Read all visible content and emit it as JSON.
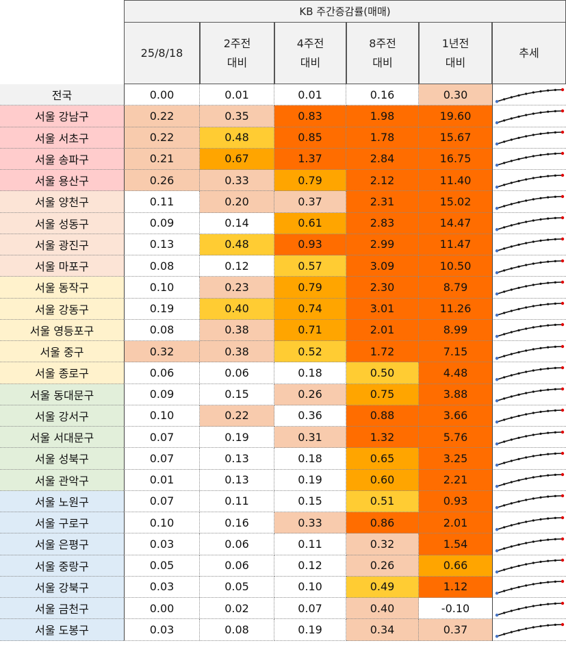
{
  "table": {
    "title": "KB 주간증감률(매매)",
    "headers": [
      {
        "line1": "25/8/18",
        "line2": ""
      },
      {
        "line1": "2주전",
        "line2": "대비"
      },
      {
        "line1": "4주전",
        "line2": "대비"
      },
      {
        "line1": "8주전",
        "line2": "대비"
      },
      {
        "line1": "1년전",
        "line2": "대비"
      },
      {
        "line1": "추세",
        "line2": ""
      }
    ],
    "group_colors": {
      "national": "#f2f2f2",
      "g1": "#ffcccc",
      "g2": "#fce4d6",
      "g3": "#fff2cc",
      "g4": "#e2efda",
      "g5": "#ddebf7"
    },
    "cell_colors": {
      "none": "#ffffff",
      "light": "#f8cbad",
      "yellow": "#ffcc33",
      "orange": "#ffa500",
      "dark": "#ff6d00"
    },
    "rows": [
      {
        "name": "전국",
        "group": "national",
        "values": [
          "0.00",
          "0.01",
          "0.01",
          "0.16",
          "0.30"
        ],
        "colors": [
          "none",
          "none",
          "none",
          "none",
          "light"
        ]
      },
      {
        "name": "서울 강남구",
        "group": "g1",
        "values": [
          "0.22",
          "0.35",
          "0.83",
          "1.98",
          "19.60"
        ],
        "colors": [
          "light",
          "light",
          "dark",
          "dark",
          "dark"
        ]
      },
      {
        "name": "서울 서초구",
        "group": "g1",
        "values": [
          "0.22",
          "0.48",
          "0.85",
          "1.78",
          "15.67"
        ],
        "colors": [
          "light",
          "yellow",
          "dark",
          "dark",
          "dark"
        ]
      },
      {
        "name": "서울 송파구",
        "group": "g1",
        "values": [
          "0.21",
          "0.67",
          "1.37",
          "2.84",
          "16.75"
        ],
        "colors": [
          "light",
          "orange",
          "dark",
          "dark",
          "dark"
        ]
      },
      {
        "name": "서울 용산구",
        "group": "g1",
        "values": [
          "0.26",
          "0.33",
          "0.79",
          "2.12",
          "11.40"
        ],
        "colors": [
          "light",
          "light",
          "orange",
          "dark",
          "dark"
        ]
      },
      {
        "name": "서울 양천구",
        "group": "g2",
        "values": [
          "0.11",
          "0.20",
          "0.37",
          "2.31",
          "15.02"
        ],
        "colors": [
          "none",
          "light",
          "light",
          "dark",
          "dark"
        ]
      },
      {
        "name": "서울 성동구",
        "group": "g2",
        "values": [
          "0.09",
          "0.14",
          "0.61",
          "2.83",
          "14.47"
        ],
        "colors": [
          "none",
          "none",
          "orange",
          "dark",
          "dark"
        ]
      },
      {
        "name": "서울 광진구",
        "group": "g2",
        "values": [
          "0.13",
          "0.48",
          "0.93",
          "2.99",
          "11.47"
        ],
        "colors": [
          "none",
          "yellow",
          "dark",
          "dark",
          "dark"
        ]
      },
      {
        "name": "서울 마포구",
        "group": "g2",
        "values": [
          "0.08",
          "0.12",
          "0.57",
          "3.09",
          "10.50"
        ],
        "colors": [
          "none",
          "none",
          "yellow",
          "dark",
          "dark"
        ]
      },
      {
        "name": "서울 동작구",
        "group": "g3",
        "values": [
          "0.10",
          "0.23",
          "0.79",
          "2.30",
          "8.79"
        ],
        "colors": [
          "none",
          "light",
          "orange",
          "dark",
          "dark"
        ]
      },
      {
        "name": "서울 강동구",
        "group": "g3",
        "values": [
          "0.19",
          "0.40",
          "0.74",
          "3.01",
          "11.26"
        ],
        "colors": [
          "none",
          "yellow",
          "orange",
          "dark",
          "dark"
        ]
      },
      {
        "name": "서울 영등포구",
        "group": "g3",
        "values": [
          "0.08",
          "0.38",
          "0.71",
          "2.01",
          "8.99"
        ],
        "colors": [
          "none",
          "light",
          "orange",
          "dark",
          "dark"
        ]
      },
      {
        "name": "서울 중구",
        "group": "g3",
        "values": [
          "0.32",
          "0.38",
          "0.52",
          "1.72",
          "7.15"
        ],
        "colors": [
          "light",
          "light",
          "yellow",
          "dark",
          "dark"
        ]
      },
      {
        "name": "서울 종로구",
        "group": "g3",
        "values": [
          "0.06",
          "0.06",
          "0.18",
          "0.50",
          "4.48"
        ],
        "colors": [
          "none",
          "none",
          "none",
          "yellow",
          "dark"
        ]
      },
      {
        "name": "서울 동대문구",
        "group": "g4",
        "values": [
          "0.09",
          "0.15",
          "0.26",
          "0.75",
          "3.88"
        ],
        "colors": [
          "none",
          "none",
          "light",
          "orange",
          "dark"
        ]
      },
      {
        "name": "서울 강서구",
        "group": "g4",
        "values": [
          "0.10",
          "0.22",
          "0.36",
          "0.88",
          "3.66"
        ],
        "colors": [
          "none",
          "light",
          "none",
          "dark",
          "dark"
        ]
      },
      {
        "name": "서울 서대문구",
        "group": "g4",
        "values": [
          "0.07",
          "0.19",
          "0.31",
          "1.32",
          "5.76"
        ],
        "colors": [
          "none",
          "none",
          "light",
          "dark",
          "dark"
        ]
      },
      {
        "name": "서울 성북구",
        "group": "g4",
        "values": [
          "0.07",
          "0.13",
          "0.18",
          "0.65",
          "3.25"
        ],
        "colors": [
          "none",
          "none",
          "none",
          "orange",
          "dark"
        ]
      },
      {
        "name": "서울 관악구",
        "group": "g4",
        "values": [
          "0.01",
          "0.13",
          "0.19",
          "0.60",
          "2.21"
        ],
        "colors": [
          "none",
          "none",
          "none",
          "orange",
          "dark"
        ]
      },
      {
        "name": "서울 노원구",
        "group": "g5",
        "values": [
          "0.07",
          "0.11",
          "0.15",
          "0.51",
          "0.93"
        ],
        "colors": [
          "none",
          "none",
          "none",
          "yellow",
          "dark"
        ]
      },
      {
        "name": "서울 구로구",
        "group": "g5",
        "values": [
          "0.10",
          "0.16",
          "0.33",
          "0.86",
          "2.01"
        ],
        "colors": [
          "none",
          "none",
          "light",
          "dark",
          "dark"
        ]
      },
      {
        "name": "서울 은평구",
        "group": "g5",
        "values": [
          "0.03",
          "0.06",
          "0.11",
          "0.32",
          "1.54"
        ],
        "colors": [
          "none",
          "none",
          "none",
          "light",
          "dark"
        ]
      },
      {
        "name": "서울 중랑구",
        "group": "g5",
        "values": [
          "0.05",
          "0.06",
          "0.12",
          "0.26",
          "0.66"
        ],
        "colors": [
          "none",
          "none",
          "none",
          "light",
          "orange"
        ]
      },
      {
        "name": "서울 강북구",
        "group": "g5",
        "values": [
          "0.03",
          "0.05",
          "0.10",
          "0.49",
          "1.12"
        ],
        "colors": [
          "none",
          "none",
          "none",
          "yellow",
          "dark"
        ]
      },
      {
        "name": "서울 금천구",
        "group": "g5",
        "values": [
          "0.00",
          "0.02",
          "0.07",
          "0.40",
          "-0.10"
        ],
        "colors": [
          "none",
          "none",
          "none",
          "light",
          "none"
        ]
      },
      {
        "name": "서울 도봉구",
        "group": "g5",
        "values": [
          "0.03",
          "0.08",
          "0.19",
          "0.34",
          "0.37"
        ],
        "colors": [
          "none",
          "none",
          "none",
          "light",
          "light"
        ]
      }
    ]
  }
}
